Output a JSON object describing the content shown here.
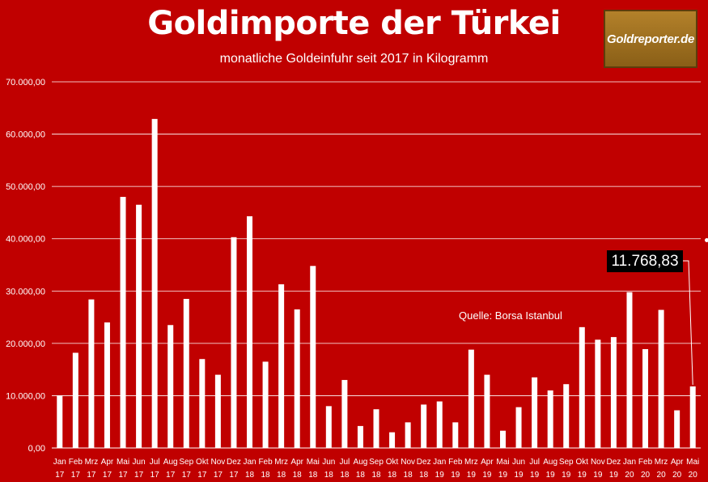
{
  "header": {
    "title": "Goldimporte der Türkei",
    "subtitle": "monatliche Goldeinfuhr seit 2017 in Kilogramm",
    "logo_text": "Goldreporter.de"
  },
  "annotations": {
    "source": "Quelle: Borsa Istanbul",
    "last_value_label": "11.768,83"
  },
  "colors": {
    "background": "#c00000",
    "bars": "#ffffff",
    "gridlines": "#ffffff",
    "logo": "#a8771f"
  },
  "chart_data": {
    "type": "bar",
    "title": "Goldimporte der Türkei",
    "subtitle": "monatliche Goldeinfuhr seit 2017 in Kilogramm",
    "xlabel": "",
    "ylabel": "",
    "ylim": [
      0,
      70000
    ],
    "yticks": [
      "0,00",
      "10.000,00",
      "20.000,00",
      "30.000,00",
      "40.000,00",
      "50.000,00",
      "60.000,00",
      "70.000,00"
    ],
    "grid": true,
    "legend": "none",
    "categories": [
      {
        "month": "Jan",
        "year": "17"
      },
      {
        "month": "Feb",
        "year": "17"
      },
      {
        "month": "Mrz",
        "year": "17"
      },
      {
        "month": "Apr",
        "year": "17"
      },
      {
        "month": "Mai",
        "year": "17"
      },
      {
        "month": "Jun",
        "year": "17"
      },
      {
        "month": "Jul",
        "year": "17"
      },
      {
        "month": "Aug",
        "year": "17"
      },
      {
        "month": "Sep",
        "year": "17"
      },
      {
        "month": "Okt",
        "year": "17"
      },
      {
        "month": "Nov",
        "year": "17"
      },
      {
        "month": "Dez",
        "year": "17"
      },
      {
        "month": "Jan",
        "year": "18"
      },
      {
        "month": "Feb",
        "year": "18"
      },
      {
        "month": "Mrz",
        "year": "18"
      },
      {
        "month": "Apr",
        "year": "18"
      },
      {
        "month": "Mai",
        "year": "18"
      },
      {
        "month": "Jun",
        "year": "18"
      },
      {
        "month": "Jul",
        "year": "18"
      },
      {
        "month": "Aug",
        "year": "18"
      },
      {
        "month": "Sep",
        "year": "18"
      },
      {
        "month": "Okt",
        "year": "18"
      },
      {
        "month": "Nov",
        "year": "18"
      },
      {
        "month": "Dez",
        "year": "18"
      },
      {
        "month": "Jan",
        "year": "19"
      },
      {
        "month": "Feb",
        "year": "19"
      },
      {
        "month": "Mrz",
        "year": "19"
      },
      {
        "month": "Apr",
        "year": "19"
      },
      {
        "month": "Mai",
        "year": "19"
      },
      {
        "month": "Jun",
        "year": "19"
      },
      {
        "month": "Jul",
        "year": "19"
      },
      {
        "month": "Aug",
        "year": "19"
      },
      {
        "month": "Sep",
        "year": "19"
      },
      {
        "month": "Okt",
        "year": "19"
      },
      {
        "month": "Nov",
        "year": "19"
      },
      {
        "month": "Dez",
        "year": "19"
      },
      {
        "month": "Jan",
        "year": "20"
      },
      {
        "month": "Feb",
        "year": "20"
      },
      {
        "month": "Mrz",
        "year": "20"
      },
      {
        "month": "Apr",
        "year": "20"
      },
      {
        "month": "Mai",
        "year": "20"
      }
    ],
    "values": [
      10000,
      18200,
      28400,
      24000,
      48000,
      46500,
      62900,
      23500,
      28500,
      17000,
      14000,
      40300,
      44300,
      16500,
      31300,
      26500,
      34800,
      8000,
      13000,
      4200,
      7400,
      3000,
      4900,
      8300,
      8900,
      4900,
      18800,
      14000,
      3300,
      7800,
      13500,
      11000,
      12200,
      23100,
      20700,
      21200,
      29800,
      18900,
      26400,
      7200,
      11768.83
    ]
  }
}
